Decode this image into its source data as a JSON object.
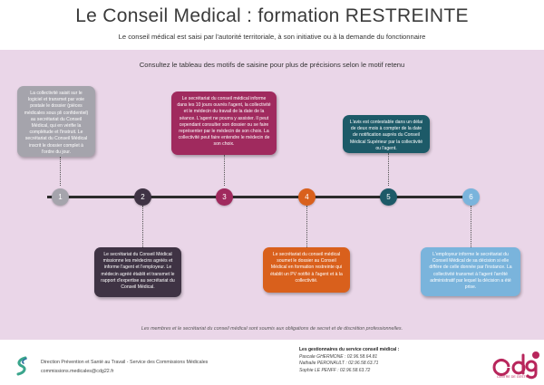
{
  "header": {
    "title": "Le Conseil Medical : formation RESTREINTE",
    "subtitle": "Le conseil médical est saisi par l'autorité territoriale, à son initiative ou à la demande du fonctionnaire"
  },
  "panel": {
    "heading": "Consultez le tableau des motifs de saisine pour plus de précisions selon le motif retenu"
  },
  "steps": [
    {
      "number": "1",
      "color": "#a5a4ac",
      "position": "top",
      "text": "La collectivité saisit sur le logiciel et transmet par voie postale le dossier (pièces médicales sous pli confidentiel) au secrétariat du Conseil Médical, qui en vérifie la complétude et l'instruit. Le secrétariat du Conseil Médical inscrit le dossier complet à l'ordre du jour."
    },
    {
      "number": "2",
      "color": "#3f3344",
      "position": "bottom",
      "text": "Le secrétariat du Conseil Médical missionne les médecins agréés et informe l'agent et l'employeur. Le médecin agréé établit et transmet le rapport d'expertise au secrétariat du Conseil Médical."
    },
    {
      "number": "3",
      "color": "#a02a5e",
      "position": "top",
      "text": "Le secrétariat du conseil médical informe dans les 10 jours ouvrés l'agent, la collectivité et le médecin du travail de la date de la séance. L'agent ne pourra y assister. Il peut cependant consulter son dossier ou se faire représenter par le médecin de son choix. La collectivité peut faire entendre le médecin de son choix."
    },
    {
      "number": "4",
      "color": "#d9601c",
      "position": "bottom",
      "text": "Le secrétariat du conseil médical soumet le dossier au Conseil Médical en formation restreinte qui établit un PV notifié à l'agent et à la collectivité."
    },
    {
      "number": "5",
      "color": "#1d5a68",
      "position": "top",
      "text": "L'avis est contestable dans un délai de deux mois à compter de la date de notification auprès du Conseil Médical Supérieur par la collectivité ou l'agent."
    },
    {
      "number": "6",
      "color": "#7ab4dc",
      "position": "bottom",
      "text": "L'employeur informe le secrétariat du Conseil Médical de sa décision si elle diffère de celle donnée par l'instance. La collectivité transmet à l'agent l'arrêté administratif par lequel la décision a été prise."
    }
  ],
  "footnote": "Les membres et le secrétariat du conseil médical sont soumis aux obligations de secret et de discrétion professionnelles.",
  "footer": {
    "department": "Direction Prévention et Santé au Travail - Service des Commissions Médicales",
    "email": "commissions.medicales@cdg22.fr",
    "contacts_heading": "Les gestionnaires du service conseil médical :",
    "contacts": [
      "Pascale GHERMONE : 02.96.58.64.81",
      "Nathalie PERONAULT : 02.96.58.63.71",
      "Sophie LE PENFF : 02.96.58.63.72"
    ],
    "brand_tagline": "CENTRE DE GESTION"
  },
  "colors": {
    "panel_bg": "#ead6e8",
    "brand": "#b8265c"
  }
}
